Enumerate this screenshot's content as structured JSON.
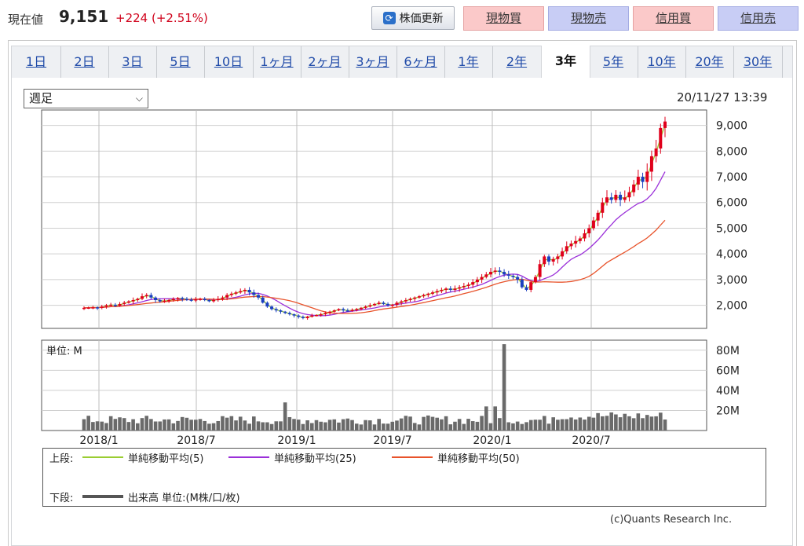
{
  "header": {
    "price_label": "現在値",
    "price_value": "9,151",
    "price_change": "+224 (+2.51%)",
    "refresh_label": "株価更新",
    "buttons": [
      {
        "label": "現物買",
        "kind": "buy"
      },
      {
        "label": "現物売",
        "kind": "sell"
      },
      {
        "label": "信用買",
        "kind": "buy"
      },
      {
        "label": "信用売",
        "kind": "sell"
      }
    ]
  },
  "tabs": [
    "1日",
    "2日",
    "3日",
    "5日",
    "10日",
    "1ヶ月",
    "2ヶ月",
    "3ヶ月",
    "6ヶ月",
    "1年",
    "2年",
    "3年",
    "5年",
    "10年",
    "20年",
    "30年"
  ],
  "active_tab": "3年",
  "controls": {
    "period_select": "週足",
    "timestamp": "20/11/27 13:39"
  },
  "chart_data": [
    {
      "type": "candlestick",
      "x_ticks": [
        "2018/1",
        "2018/7",
        "2019/1",
        "2019/7",
        "2020/1",
        "2020/7"
      ],
      "y_ticks": [
        "2,000",
        "3,000",
        "4,000",
        "5,000",
        "6,000",
        "7,000",
        "8,000",
        "9,000"
      ],
      "ylim": [
        1100,
        9600
      ],
      "series_close_by_week": [
        1900,
        1910,
        1920,
        1900,
        1950,
        2000,
        2020,
        1980,
        2050,
        2100,
        2150,
        2200,
        2250,
        2350,
        2400,
        2300,
        2200,
        2150,
        2180,
        2200,
        2250,
        2280,
        2250,
        2220,
        2200,
        2230,
        2250,
        2200,
        2180,
        2200,
        2250,
        2300,
        2400,
        2450,
        2500,
        2550,
        2600,
        2500,
        2400,
        2300,
        2100,
        1950,
        1850,
        1800,
        1750,
        1700,
        1650,
        1600,
        1550,
        1500,
        1560,
        1600,
        1620,
        1650,
        1700,
        1750,
        1800,
        1850,
        1800,
        1780,
        1820,
        1850,
        1900,
        1950,
        2000,
        2050,
        2100,
        2050,
        2000,
        2020,
        2100,
        2150,
        2200,
        2250,
        2300,
        2350,
        2400,
        2450,
        2500,
        2550,
        2600,
        2650,
        2600,
        2650,
        2700,
        2750,
        2800,
        2900,
        3000,
        3100,
        3200,
        3300,
        3350,
        3300,
        3200,
        3150,
        3100,
        3000,
        2700,
        2600,
        2900,
        3100,
        3600,
        3900,
        3700,
        3800,
        3900,
        4100,
        4300,
        4400,
        4500,
        4600,
        4800,
        5000,
        5300,
        5600,
        6000,
        6200,
        6100,
        6300,
        6100,
        6200,
        6400,
        6700,
        7000,
        6800,
        7200,
        7800,
        8100,
        8900,
        9151
      ],
      "series": [
        {
          "name": "単純移動平均(5)",
          "color": "#9acd32"
        },
        {
          "name": "単純移動平均(25)",
          "color": "#9b30d9"
        },
        {
          "name": "単純移動平均(50)",
          "color": "#e8532b"
        }
      ],
      "up_color": "#e0001b",
      "down_color": "#1a3fbf"
    },
    {
      "type": "bar",
      "unit_label": "単位: M",
      "y_ticks": [
        "20M",
        "40M",
        "60M",
        "80M"
      ],
      "ylim": [
        0,
        90
      ],
      "spike_week": 94,
      "spike_value": 86,
      "color": "#6a6a6a"
    }
  ],
  "legend": {
    "upper_label": "上段:",
    "lower_label": "下段:",
    "volume_label": "出来高 単位:(M株/口/枚)"
  },
  "credit": "(c)Quants Research Inc."
}
